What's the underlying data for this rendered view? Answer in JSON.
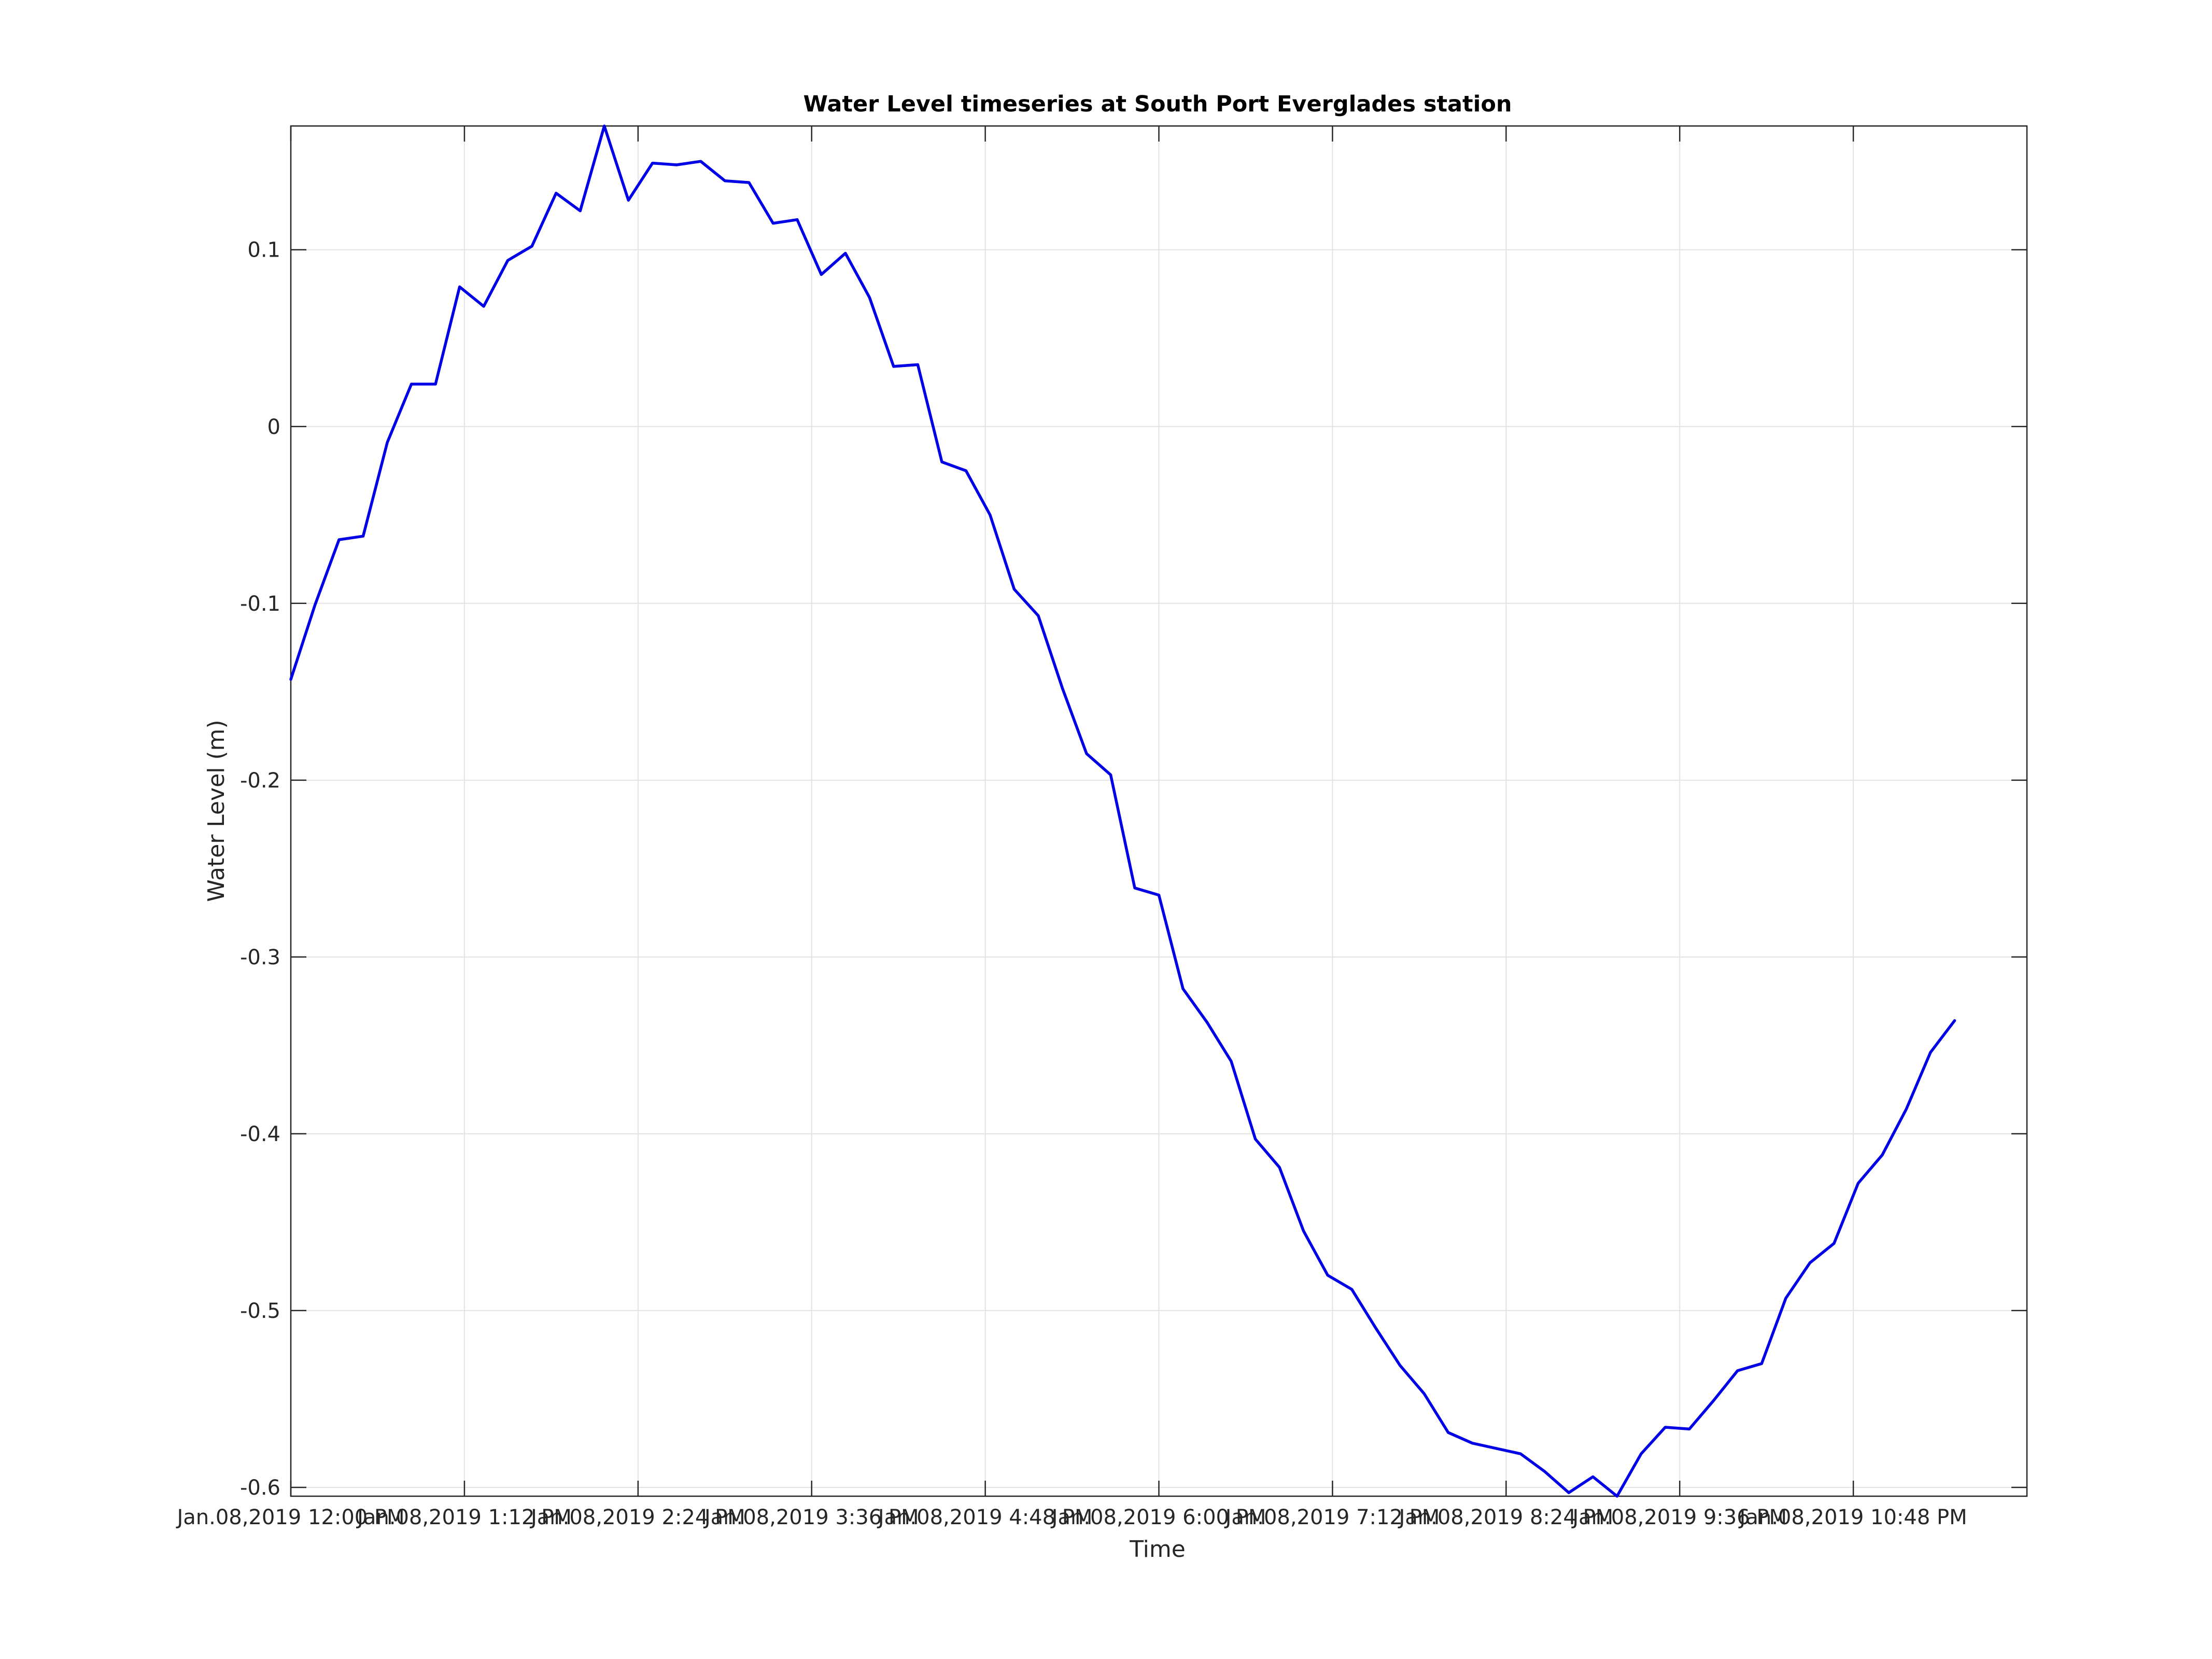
{
  "chart_data": {
    "type": "line",
    "title": "Water Level timeseries at South Port Everglades station",
    "xlabel": "Time",
    "ylabel": "Water Level (m)",
    "grid": true,
    "legend": "none",
    "xlim": [
      0,
      1440
    ],
    "ylim": [
      -0.605,
      0.17
    ],
    "y_ticks": [
      {
        "value": 0.1,
        "label": "0.1"
      },
      {
        "value": 0,
        "label": "0"
      },
      {
        "value": -0.1,
        "label": "-0.1"
      },
      {
        "value": -0.2,
        "label": "-0.2"
      },
      {
        "value": -0.3,
        "label": "-0.3"
      },
      {
        "value": -0.4,
        "label": "-0.4"
      },
      {
        "value": -0.5,
        "label": "-0.5"
      },
      {
        "value": -0.6,
        "label": "-0.6"
      }
    ],
    "x_ticks": [
      {
        "value": 0,
        "label": "Jan.08,2019 12:00 PM"
      },
      {
        "value": 144,
        "label": "Jan.08,2019  1:12 PM"
      },
      {
        "value": 288,
        "label": "Jan.08,2019  2:24 PM"
      },
      {
        "value": 432,
        "label": "Jan.08,2019  3:36 PM"
      },
      {
        "value": 576,
        "label": "Jan.08,2019  4:48 PM"
      },
      {
        "value": 720,
        "label": "Jan.08,2019  6:00 PM"
      },
      {
        "value": 864,
        "label": "Jan.08,2019  7:12 PM"
      },
      {
        "value": 1008,
        "label": "Jan.08,2019  8:24 PM"
      },
      {
        "value": 1152,
        "label": "Jan.08,2019  9:36 PM"
      },
      {
        "value": 1296,
        "label": "Jan.08,2019 10:48 PM"
      }
    ],
    "series": [
      {
        "color": "#0000e6",
        "x": [
          0,
          20,
          40,
          60,
          80,
          100,
          120,
          140,
          160,
          180,
          200,
          220,
          240,
          260,
          280,
          300,
          320,
          340,
          360,
          380,
          400,
          420,
          440,
          460,
          480,
          500,
          520,
          540,
          560,
          580,
          600,
          620,
          640,
          660,
          680,
          700,
          720,
          740,
          760,
          780,
          800,
          820,
          840,
          860,
          880,
          900,
          920,
          940,
          960,
          980,
          1000,
          1020,
          1040,
          1060,
          1080,
          1100,
          1120,
          1140,
          1160,
          1180,
          1200,
          1220,
          1240,
          1260,
          1280,
          1300,
          1320,
          1340,
          1360,
          1380
        ],
        "values": [
          -0.143,
          -0.101,
          -0.064,
          -0.062,
          -0.009,
          0.024,
          0.024,
          0.079,
          0.068,
          0.094,
          0.102,
          0.132,
          0.122,
          0.17,
          0.128,
          0.149,
          0.148,
          0.15,
          0.139,
          0.138,
          0.115,
          0.117,
          0.086,
          0.098,
          0.073,
          0.034,
          0.035,
          -0.02,
          -0.025,
          -0.05,
          -0.092,
          -0.107,
          -0.148,
          -0.185,
          -0.197,
          -0.261,
          -0.265,
          -0.318,
          -0.337,
          -0.359,
          -0.403,
          -0.419,
          -0.455,
          -0.48,
          -0.488,
          -0.51,
          -0.531,
          -0.547,
          -0.569,
          -0.575,
          -0.578,
          -0.581,
          -0.591,
          -0.603,
          -0.594,
          -0.605,
          -0.581,
          -0.566,
          -0.567,
          -0.551,
          -0.534,
          -0.53,
          -0.493,
          -0.473,
          -0.462,
          -0.428,
          -0.412,
          -0.386,
          -0.354,
          -0.336
        ]
      }
    ]
  }
}
